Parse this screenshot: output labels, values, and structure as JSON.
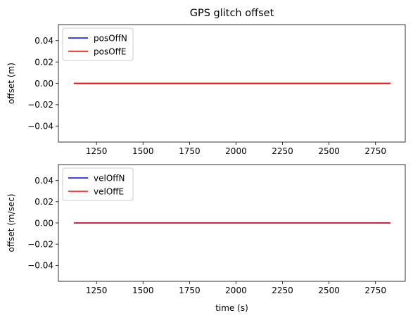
{
  "chart_data": [
    {
      "type": "line",
      "title": "GPS glitch offset",
      "xlabel": "",
      "ylabel": "offset (m)",
      "xlim": [
        1045,
        2910
      ],
      "ylim": [
        -0.055,
        0.055
      ],
      "x_ticks": [
        1250,
        1500,
        1750,
        2000,
        2250,
        2500,
        2750
      ],
      "y_ticks": [
        -0.04,
        -0.02,
        0.0,
        0.02,
        0.04
      ],
      "y_tick_labels": [
        "−0.04",
        "−0.02",
        "0.00",
        "0.02",
        "0.04"
      ],
      "grid": false,
      "legend_position": "top-left",
      "series": [
        {
          "name": "posOffN",
          "color": "#0000ff",
          "x": [
            1128,
            2830
          ],
          "y": [
            0,
            0
          ]
        },
        {
          "name": "posOffE",
          "color": "#ff0000",
          "x": [
            1128,
            2830
          ],
          "y": [
            0,
            0
          ]
        }
      ]
    },
    {
      "type": "line",
      "title": "",
      "xlabel": "time (s)",
      "ylabel": "offset (m/sec)",
      "xlim": [
        1045,
        2910
      ],
      "ylim": [
        -0.055,
        0.055
      ],
      "x_ticks": [
        1250,
        1500,
        1750,
        2000,
        2250,
        2500,
        2750
      ],
      "y_ticks": [
        -0.04,
        -0.02,
        0.0,
        0.02,
        0.04
      ],
      "y_tick_labels": [
        "−0.04",
        "−0.02",
        "0.00",
        "0.02",
        "0.04"
      ],
      "grid": false,
      "legend_position": "top-left",
      "series": [
        {
          "name": "velOffN",
          "color": "#0000ff",
          "x": [
            1128,
            2830
          ],
          "y": [
            0,
            0
          ]
        },
        {
          "name": "velOffE",
          "color": "#ff0000",
          "x": [
            1128,
            2830
          ],
          "y": [
            0,
            0
          ]
        }
      ]
    }
  ]
}
